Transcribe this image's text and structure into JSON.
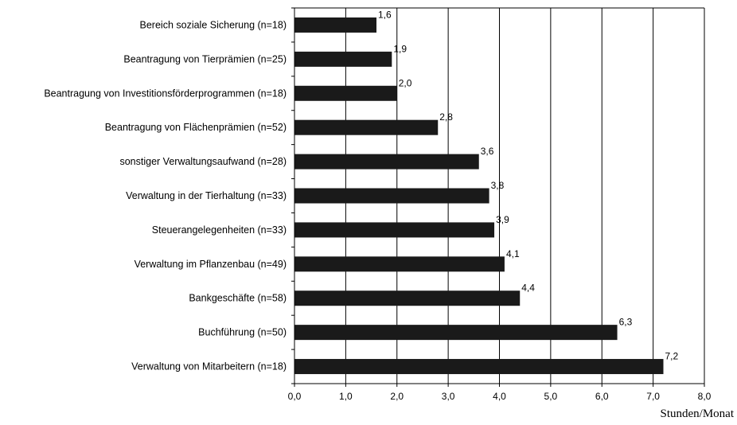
{
  "chart_data": {
    "type": "bar",
    "orientation": "horizontal",
    "categories": [
      "Bereich soziale Sicherung (n=18)",
      "Beantragung von Tierprämien (n=25)",
      "Beantragung von Investitionsförderprogrammen (n=18)",
      "Beantragung von Flächenprämien (n=52)",
      "sonstiger Verwaltungsaufwand (n=28)",
      "Verwaltung in der Tierhaltung (n=33)",
      "Steuerangelegenheiten (n=33)",
      "Verwaltung im Pflanzenbau (n=49)",
      "Bankgeschäfte (n=58)",
      "Buchführung (n=50)",
      "Verwaltung von Mitarbeitern (n=18)"
    ],
    "values": [
      1.6,
      1.9,
      2.0,
      2.8,
      3.6,
      3.8,
      3.9,
      4.1,
      4.4,
      6.3,
      7.2
    ],
    "data_labels": [
      "1,6",
      "1,9",
      "2,0",
      "2,8",
      "3,6",
      "3,8",
      "3,9",
      "4,1",
      "4,4",
      "6,3",
      "7,2"
    ],
    "title": "",
    "xlabel": "Stunden/Monat",
    "ylabel": "",
    "xlim": [
      0,
      8
    ],
    "x_ticks": [
      0,
      1,
      2,
      3,
      4,
      5,
      6,
      7,
      8
    ],
    "x_tick_labels": [
      "0,0",
      "1,0",
      "2,0",
      "3,0",
      "4,0",
      "5,0",
      "6,0",
      "7,0",
      "8,0"
    ],
    "grid": "vertical",
    "legend": "none",
    "colors": {
      "bar": "#1a1a1a",
      "grid": "#000000",
      "background": "#ffffff"
    }
  }
}
